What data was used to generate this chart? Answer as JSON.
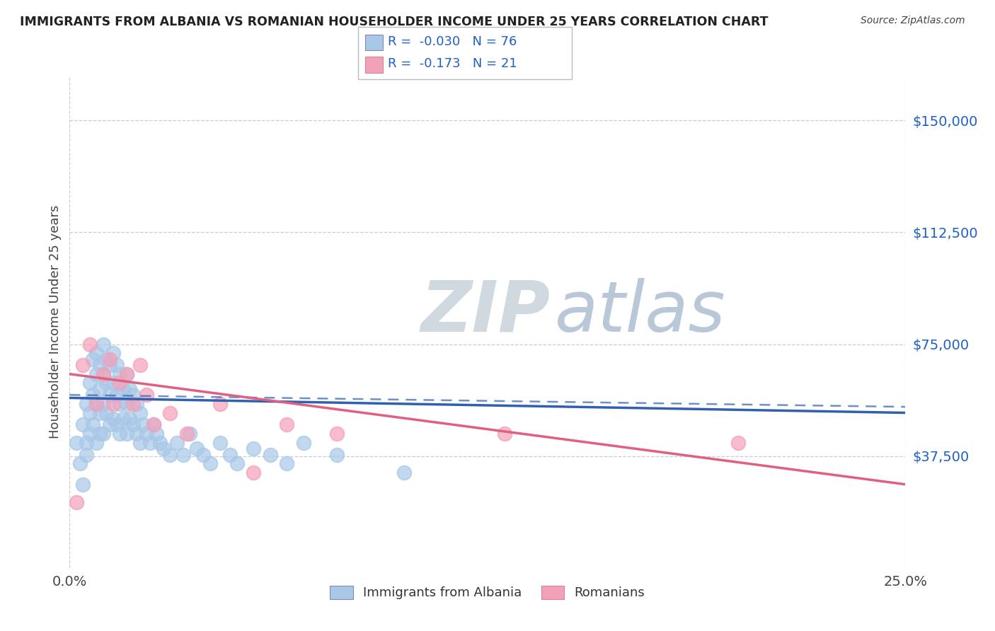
{
  "title": "IMMIGRANTS FROM ALBANIA VS ROMANIAN HOUSEHOLDER INCOME UNDER 25 YEARS CORRELATION CHART",
  "source": "Source: ZipAtlas.com",
  "ylabel": "Householder Income Under 25 years",
  "xlim": [
    0.0,
    0.25
  ],
  "ylim": [
    0,
    165000
  ],
  "yticks": [
    37500,
    75000,
    112500,
    150000
  ],
  "ytick_labels": [
    "$37,500",
    "$75,000",
    "$112,500",
    "$150,000"
  ],
  "xticks": [
    0.0,
    0.25
  ],
  "xtick_labels": [
    "0.0%",
    "25.0%"
  ],
  "albania_R": -0.03,
  "albania_N": 76,
  "romanian_R": -0.173,
  "romanian_N": 21,
  "albania_color": "#a8c8e8",
  "romanian_color": "#f4a0b8",
  "albania_line_color": "#3060b0",
  "romanian_line_color": "#e06080",
  "watermark_zip": "ZIP",
  "watermark_atlas": "atlas",
  "legend_entries": [
    "Immigrants from Albania",
    "Romanians"
  ],
  "albania_x": [
    0.002,
    0.003,
    0.004,
    0.004,
    0.005,
    0.005,
    0.005,
    0.006,
    0.006,
    0.006,
    0.007,
    0.007,
    0.007,
    0.008,
    0.008,
    0.008,
    0.008,
    0.009,
    0.009,
    0.009,
    0.009,
    0.01,
    0.01,
    0.01,
    0.01,
    0.011,
    0.011,
    0.011,
    0.012,
    0.012,
    0.012,
    0.013,
    0.013,
    0.013,
    0.014,
    0.014,
    0.014,
    0.015,
    0.015,
    0.015,
    0.016,
    0.016,
    0.017,
    0.017,
    0.017,
    0.018,
    0.018,
    0.019,
    0.019,
    0.02,
    0.02,
    0.021,
    0.021,
    0.022,
    0.023,
    0.024,
    0.025,
    0.026,
    0.027,
    0.028,
    0.03,
    0.032,
    0.034,
    0.036,
    0.038,
    0.04,
    0.042,
    0.045,
    0.048,
    0.05,
    0.055,
    0.06,
    0.065,
    0.07,
    0.08,
    0.1
  ],
  "albania_y": [
    42000,
    35000,
    28000,
    48000,
    38000,
    55000,
    42000,
    52000,
    62000,
    45000,
    70000,
    58000,
    48000,
    72000,
    65000,
    55000,
    42000,
    68000,
    60000,
    52000,
    45000,
    75000,
    65000,
    55000,
    45000,
    70000,
    62000,
    52000,
    68000,
    58000,
    48000,
    72000,
    62000,
    50000,
    68000,
    58000,
    48000,
    65000,
    55000,
    45000,
    60000,
    50000,
    65000,
    55000,
    45000,
    60000,
    50000,
    58000,
    48000,
    55000,
    45000,
    52000,
    42000,
    48000,
    45000,
    42000,
    48000,
    45000,
    42000,
    40000,
    38000,
    42000,
    38000,
    45000,
    40000,
    38000,
    35000,
    42000,
    38000,
    35000,
    40000,
    38000,
    35000,
    42000,
    38000,
    32000
  ],
  "romanian_x": [
    0.002,
    0.004,
    0.006,
    0.008,
    0.01,
    0.012,
    0.013,
    0.015,
    0.017,
    0.019,
    0.021,
    0.023,
    0.025,
    0.03,
    0.035,
    0.045,
    0.055,
    0.065,
    0.08,
    0.13,
    0.2
  ],
  "romanian_y": [
    22000,
    68000,
    75000,
    55000,
    65000,
    70000,
    55000,
    62000,
    65000,
    55000,
    68000,
    58000,
    48000,
    52000,
    45000,
    55000,
    32000,
    48000,
    45000,
    45000,
    42000
  ]
}
